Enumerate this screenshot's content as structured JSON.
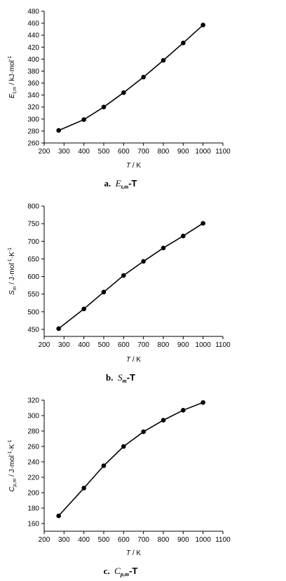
{
  "chart_data": [
    {
      "type": "line",
      "caption": {
        "letter": "a.",
        "sym": "E",
        "sub": "t,m",
        "suffix": "-T"
      },
      "ylabel": {
        "sym": "E",
        "sub": "t,m",
        "unit": " / kJ·mol",
        "sup": "-1"
      },
      "xlabel": {
        "sym": "T",
        "unit": " / K"
      },
      "xlim": [
        200,
        1100
      ],
      "ylim": [
        260,
        480
      ],
      "xticks": [
        "200",
        "300",
        "400",
        "500",
        "600",
        "700",
        "800",
        "900",
        "1000",
        "1100"
      ],
      "yticks": [
        "260",
        "280",
        "300",
        "320",
        "340",
        "360",
        "380",
        "400",
        "420",
        "440",
        "460",
        "480"
      ],
      "x": [
        273,
        400,
        500,
        600,
        700,
        800,
        900,
        1000
      ],
      "y": [
        281,
        299,
        320,
        344,
        370,
        398,
        427,
        457
      ],
      "color": "#000000"
    },
    {
      "type": "line",
      "caption": {
        "letter": "b.",
        "sym": "S",
        "sub": "m",
        "suffix": "-T"
      },
      "ylabel": {
        "sym": "S",
        "sub": "m",
        "unit": " / J·mol",
        "sup": "-1",
        "unit2": "·K",
        "sup2": "-1"
      },
      "xlabel": {
        "sym": "T",
        "unit": " / K"
      },
      "xlim": [
        200,
        1100
      ],
      "ylim": [
        430,
        800
      ],
      "xticks": [
        "200",
        "300",
        "400",
        "500",
        "600",
        "700",
        "800",
        "900",
        "1000",
        "1100"
      ],
      "yticks": [
        "450",
        "500",
        "550",
        "600",
        "650",
        "700",
        "750",
        "800"
      ],
      "x": [
        273,
        400,
        500,
        600,
        700,
        800,
        900,
        1000
      ],
      "y": [
        452,
        508,
        556,
        603,
        643,
        681,
        715,
        751
      ],
      "color": "#000000"
    },
    {
      "type": "line",
      "caption": {
        "letter": "c.",
        "sym": "C",
        "sub": "p,m",
        "suffix": "-T"
      },
      "ylabel": {
        "sym": "C",
        "sub": "p,m",
        "unit": " / J·mol",
        "sup": "-1",
        "unit2": "·K",
        "sup2": "-1"
      },
      "xlabel": {
        "sym": "T",
        "unit": " / K"
      },
      "xlim": [
        200,
        1100
      ],
      "ylim": [
        150,
        320
      ],
      "xticks": [
        "200",
        "300",
        "400",
        "500",
        "600",
        "700",
        "800",
        "900",
        "1000",
        "1100"
      ],
      "yticks": [
        "160",
        "180",
        "200",
        "220",
        "240",
        "260",
        "280",
        "300",
        "320"
      ],
      "x": [
        273,
        400,
        500,
        600,
        700,
        800,
        900,
        1000
      ],
      "y": [
        170,
        206,
        235,
        260,
        279,
        294,
        307,
        317
      ],
      "color": "#000000"
    }
  ]
}
